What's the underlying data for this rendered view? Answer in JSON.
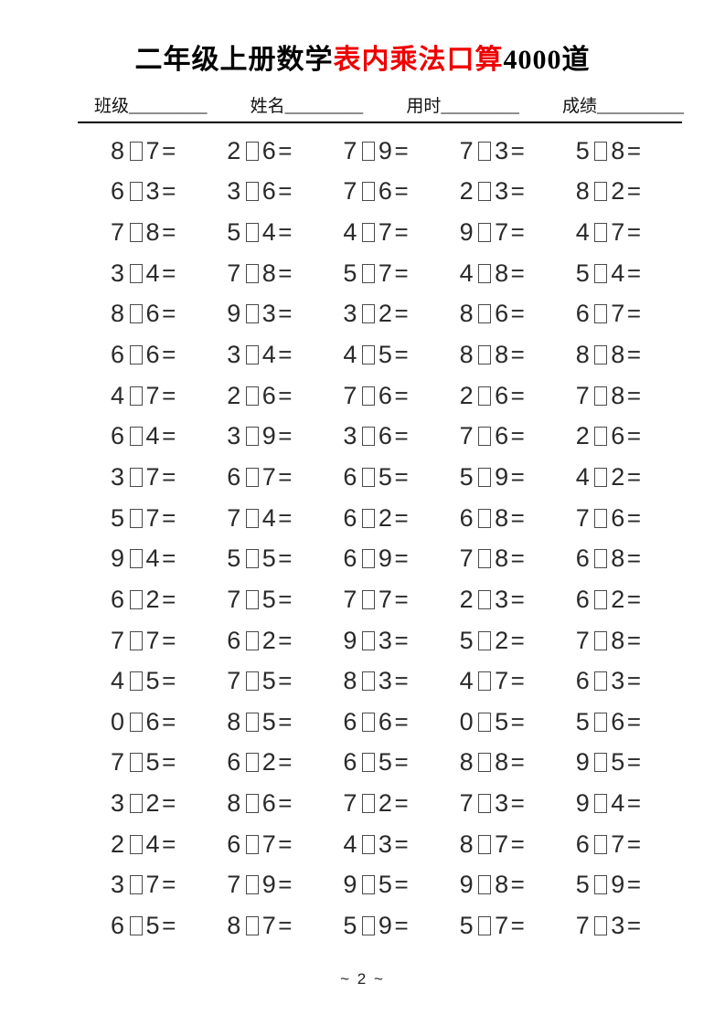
{
  "page": {
    "title": {
      "part1": "二年级上册数学",
      "highlight": "表内乘法口算",
      "part2": "4000道",
      "highlight_color": "#ee0000"
    },
    "info_fields": [
      {
        "label": "班级",
        "blank": "_________"
      },
      {
        "label": "姓名",
        "blank": "_________"
      },
      {
        "label": "用时",
        "blank": "_________"
      },
      {
        "label": "成绩",
        "blank": "__________"
      }
    ],
    "footer": {
      "page_number": "~ 2 ~"
    }
  },
  "problems": {
    "operator_glyph": "□",
    "equals": "=",
    "rows": [
      [
        [
          8,
          7
        ],
        [
          2,
          6
        ],
        [
          7,
          9
        ],
        [
          7,
          3
        ],
        [
          5,
          8
        ]
      ],
      [
        [
          6,
          3
        ],
        [
          3,
          6
        ],
        [
          7,
          6
        ],
        [
          2,
          3
        ],
        [
          8,
          2
        ]
      ],
      [
        [
          7,
          8
        ],
        [
          5,
          4
        ],
        [
          4,
          7
        ],
        [
          9,
          7
        ],
        [
          4,
          7
        ]
      ],
      [
        [
          3,
          4
        ],
        [
          7,
          8
        ],
        [
          5,
          7
        ],
        [
          4,
          8
        ],
        [
          5,
          4
        ]
      ],
      [
        [
          8,
          6
        ],
        [
          9,
          3
        ],
        [
          3,
          2
        ],
        [
          8,
          6
        ],
        [
          6,
          7
        ]
      ],
      [
        [
          6,
          6
        ],
        [
          3,
          4
        ],
        [
          4,
          5
        ],
        [
          8,
          8
        ],
        [
          8,
          8
        ]
      ],
      [
        [
          4,
          7
        ],
        [
          2,
          6
        ],
        [
          7,
          6
        ],
        [
          2,
          6
        ],
        [
          7,
          8
        ]
      ],
      [
        [
          6,
          4
        ],
        [
          3,
          9
        ],
        [
          3,
          6
        ],
        [
          7,
          6
        ],
        [
          2,
          6
        ]
      ],
      [
        [
          3,
          7
        ],
        [
          6,
          7
        ],
        [
          6,
          5
        ],
        [
          5,
          9
        ],
        [
          4,
          2
        ]
      ],
      [
        [
          5,
          7
        ],
        [
          7,
          4
        ],
        [
          6,
          2
        ],
        [
          6,
          8
        ],
        [
          7,
          6
        ]
      ],
      [
        [
          9,
          4
        ],
        [
          5,
          5
        ],
        [
          6,
          9
        ],
        [
          7,
          8
        ],
        [
          6,
          8
        ]
      ],
      [
        [
          6,
          2
        ],
        [
          7,
          5
        ],
        [
          7,
          7
        ],
        [
          2,
          3
        ],
        [
          6,
          2
        ]
      ],
      [
        [
          7,
          7
        ],
        [
          6,
          2
        ],
        [
          9,
          3
        ],
        [
          5,
          2
        ],
        [
          7,
          8
        ]
      ],
      [
        [
          4,
          5
        ],
        [
          7,
          5
        ],
        [
          8,
          3
        ],
        [
          4,
          7
        ],
        [
          6,
          3
        ]
      ],
      [
        [
          0,
          6
        ],
        [
          8,
          5
        ],
        [
          6,
          6
        ],
        [
          0,
          5
        ],
        [
          5,
          6
        ]
      ],
      [
        [
          7,
          5
        ],
        [
          6,
          2
        ],
        [
          6,
          5
        ],
        [
          8,
          8
        ],
        [
          9,
          5
        ]
      ],
      [
        [
          3,
          2
        ],
        [
          8,
          6
        ],
        [
          7,
          2
        ],
        [
          7,
          3
        ],
        [
          9,
          4
        ]
      ],
      [
        [
          2,
          4
        ],
        [
          6,
          7
        ],
        [
          4,
          3
        ],
        [
          8,
          7
        ],
        [
          6,
          7
        ]
      ],
      [
        [
          3,
          7
        ],
        [
          7,
          9
        ],
        [
          9,
          5
        ],
        [
          9,
          8
        ],
        [
          5,
          9
        ]
      ],
      [
        [
          6,
          5
        ],
        [
          8,
          7
        ],
        [
          5,
          9
        ],
        [
          5,
          7
        ],
        [
          7,
          3
        ]
      ]
    ]
  }
}
